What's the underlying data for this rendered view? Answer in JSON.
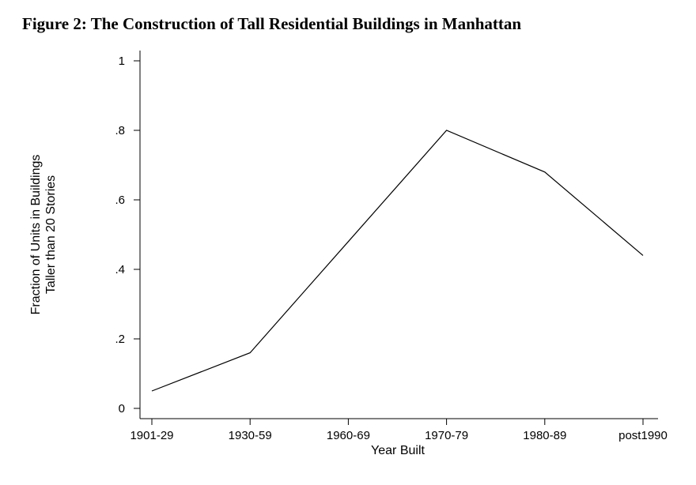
{
  "chart_data": {
    "type": "line",
    "title": "Figure 2: The Construction of Tall Residential Buildings in Manhattan",
    "xlabel": "Year Built",
    "ylabel_lines": [
      "Fraction of Units in Buildings",
      "Taller than 20 Stories"
    ],
    "categories": [
      "1901-29",
      "1930-59",
      "1960-69",
      "1970-79",
      "1980-89",
      "post1990"
    ],
    "values": [
      0.05,
      0.16,
      0.48,
      0.8,
      0.68,
      0.44
    ],
    "ylim": [
      0,
      1
    ],
    "yticks": [
      0,
      0.2,
      0.4,
      0.6,
      0.8,
      1
    ],
    "ytick_labels": [
      "0",
      ".2",
      ".4",
      ".6",
      ".8",
      "1"
    ],
    "grid": false,
    "line_color": "#000000"
  }
}
